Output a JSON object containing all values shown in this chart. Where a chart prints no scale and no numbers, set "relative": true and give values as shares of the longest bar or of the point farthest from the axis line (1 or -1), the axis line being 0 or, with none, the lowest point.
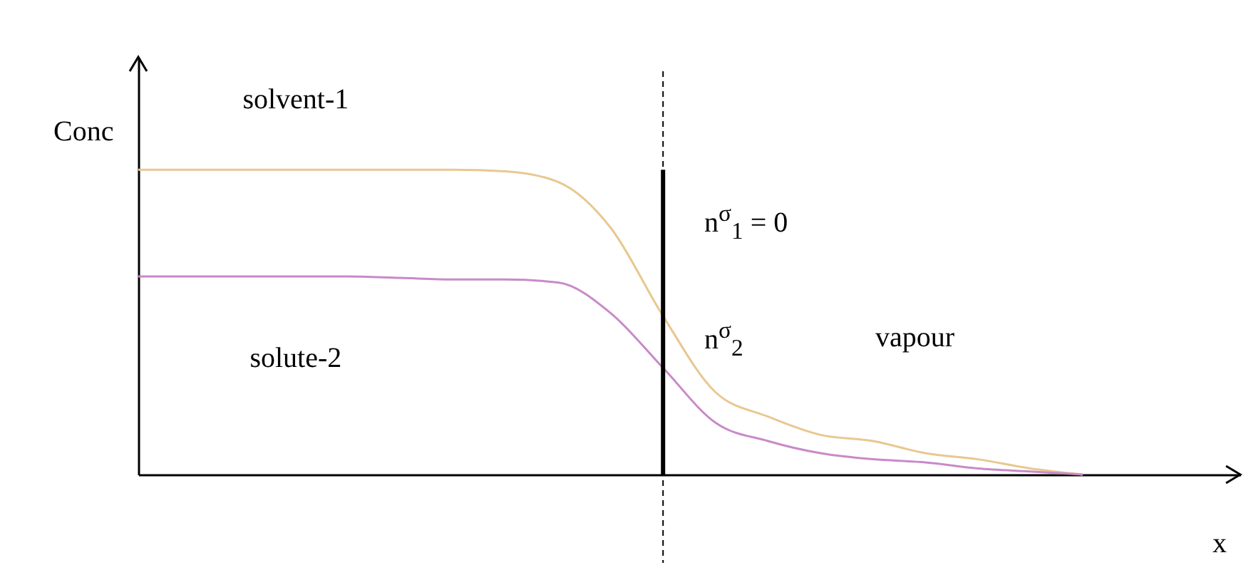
{
  "chart_data": {
    "type": "line",
    "relative": true,
    "xlabel": "x",
    "ylabel": "Conc",
    "categories": [
      null,
      null,
      null,
      null,
      null,
      null,
      null,
      null,
      null,
      null,
      null,
      null,
      null,
      null,
      null,
      null,
      null,
      null,
      null,
      null,
      null,
      null
    ],
    "series": [
      {
        "name": "solvent-1",
        "color": "#e8c890",
        "values": [
          1,
          1,
          1,
          1,
          1,
          1,
          1,
          0.995,
          0.96,
          0.81,
          0.52,
          0.27,
          0.19,
          0.13,
          0.11,
          0.07,
          0.05,
          0.02,
          0,
          null,
          null,
          null
        ]
      },
      {
        "name": "solute-2",
        "color": "#c88ac8",
        "values": [
          0.65,
          0.65,
          0.65,
          0.65,
          0.65,
          0.645,
          0.64,
          0.64,
          0.63,
          0.53,
          0.35,
          0.17,
          0.11,
          0.07,
          0.05,
          0.04,
          0.02,
          0.01,
          0,
          null,
          null,
          null
        ]
      }
    ],
    "annotations": [
      "n$^{σ}$$_{1}$ = 0",
      "n$^{σ}$$_{2}$",
      "vapour"
    ],
    "grid": false,
    "legend": false,
    "marker": "none",
    "line_style": "solid"
  }
}
